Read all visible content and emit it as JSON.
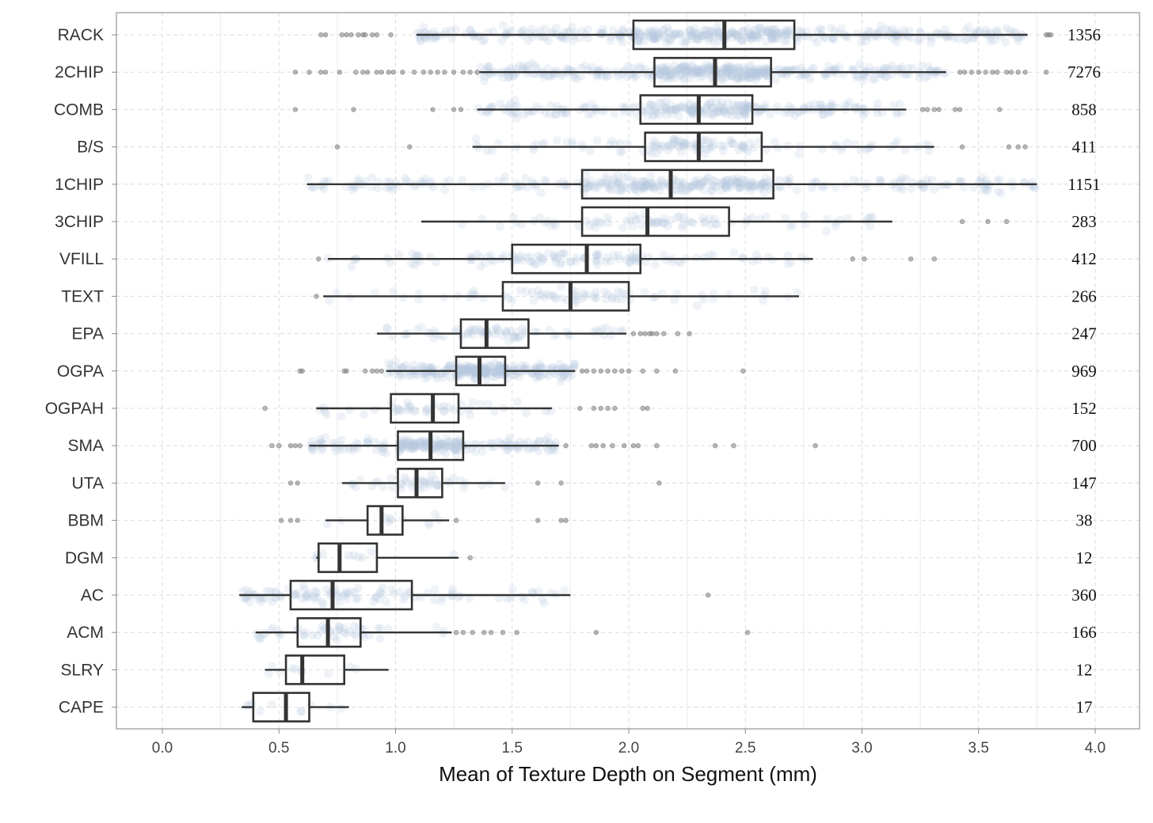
{
  "chart_data": {
    "type": "boxplot",
    "title": "",
    "xlabel": "Mean of Texture Depth on Segment (mm)",
    "ylabel": "",
    "xlim": [
      -0.2,
      4.2
    ],
    "x_ticks": [
      0.0,
      0.5,
      1.0,
      1.5,
      2.0,
      2.5,
      3.0,
      3.5,
      4.0
    ],
    "x_tick_labels": [
      "0.0",
      "0.5",
      "1.0",
      "1.5",
      "2.0",
      "2.5",
      "3.0",
      "3.5",
      "4.0"
    ],
    "grid": true,
    "colors": {
      "box_stroke": "#333333",
      "jitter": "#b8c9dd",
      "outlier": "#7f7f7f",
      "grid": "#dcdcdc",
      "panel_border": "#aaaaaa"
    },
    "categories": [
      {
        "name": "RACK",
        "n": "1356",
        "whisker_low": 1.09,
        "q1": 2.02,
        "median": 2.41,
        "q3": 2.71,
        "whisker_high": 3.71,
        "outliers": [
          0.68,
          0.7,
          0.77,
          0.79,
          0.81,
          0.84,
          0.86,
          0.87,
          0.9,
          0.92,
          0.98,
          3.79,
          3.8,
          3.81
        ]
      },
      {
        "name": "2CHIP",
        "n": "7276",
        "whisker_low": 1.36,
        "q1": 2.11,
        "median": 2.37,
        "q3": 2.61,
        "whisker_high": 3.36,
        "outliers": [
          0.57,
          0.63,
          0.68,
          0.7,
          0.76,
          0.83,
          0.86,
          0.88,
          0.92,
          0.94,
          0.97,
          0.99,
          1.03,
          1.08,
          1.12,
          1.15,
          1.18,
          1.21,
          1.25,
          1.29,
          1.32,
          1.35,
          3.42,
          3.44,
          3.47,
          3.5,
          3.53,
          3.56,
          3.58,
          3.62,
          3.64,
          3.67,
          3.7,
          3.79
        ]
      },
      {
        "name": "COMB",
        "n": "858",
        "whisker_low": 1.35,
        "q1": 2.05,
        "median": 2.3,
        "q3": 2.53,
        "whisker_high": 3.19,
        "outliers": [
          0.57,
          0.82,
          1.16,
          1.25,
          1.28,
          3.26,
          3.28,
          3.31,
          3.33,
          3.4,
          3.42,
          3.59
        ]
      },
      {
        "name": "B/S",
        "n": "411",
        "whisker_low": 1.33,
        "q1": 2.07,
        "median": 2.3,
        "q3": 2.57,
        "whisker_high": 3.31,
        "outliers": [
          0.75,
          1.06,
          3.43,
          3.63,
          3.67,
          3.7
        ]
      },
      {
        "name": "1CHIP",
        "n": "1151",
        "whisker_low": 0.62,
        "q1": 1.8,
        "median": 2.18,
        "q3": 2.62,
        "whisker_high": 3.75,
        "outliers": []
      },
      {
        "name": "3CHIP",
        "n": "283",
        "whisker_low": 1.11,
        "q1": 1.8,
        "median": 2.08,
        "q3": 2.43,
        "whisker_high": 3.13,
        "outliers": [
          3.43,
          3.54,
          3.62
        ]
      },
      {
        "name": "VFILL",
        "n": "412",
        "whisker_low": 0.71,
        "q1": 1.5,
        "median": 1.82,
        "q3": 2.05,
        "whisker_high": 2.79,
        "outliers": [
          0.67,
          2.96,
          3.01,
          3.21,
          3.31
        ]
      },
      {
        "name": "TEXT",
        "n": "266",
        "whisker_low": 0.69,
        "q1": 1.46,
        "median": 1.75,
        "q3": 2.0,
        "whisker_high": 2.73,
        "outliers": [
          0.66
        ]
      },
      {
        "name": "EPA",
        "n": "247",
        "whisker_low": 0.92,
        "q1": 1.28,
        "median": 1.39,
        "q3": 1.57,
        "whisker_high": 1.99,
        "outliers": [
          2.02,
          2.05,
          2.07,
          2.09,
          2.1,
          2.12,
          2.15,
          2.21,
          2.26
        ]
      },
      {
        "name": "OGPA",
        "n": "969",
        "whisker_low": 0.96,
        "q1": 1.26,
        "median": 1.36,
        "q3": 1.47,
        "whisker_high": 1.77,
        "outliers": [
          0.59,
          0.6,
          0.78,
          0.79,
          0.87,
          0.9,
          0.92,
          0.94,
          1.8,
          1.82,
          1.85,
          1.88,
          1.91,
          1.94,
          1.97,
          2.0,
          2.06,
          2.12,
          2.2,
          2.49
        ]
      },
      {
        "name": "OGPAH",
        "n": "152",
        "whisker_low": 0.66,
        "q1": 0.98,
        "median": 1.16,
        "q3": 1.27,
        "whisker_high": 1.67,
        "outliers": [
          0.44,
          1.79,
          1.85,
          1.88,
          1.91,
          1.94,
          2.06,
          2.08
        ]
      },
      {
        "name": "SMA",
        "n": "700",
        "whisker_low": 0.63,
        "q1": 1.01,
        "median": 1.15,
        "q3": 1.29,
        "whisker_high": 1.7,
        "outliers": [
          0.47,
          0.5,
          0.55,
          0.57,
          0.59,
          1.73,
          1.84,
          1.86,
          1.89,
          1.93,
          1.98,
          2.02,
          2.04,
          2.12,
          2.37,
          2.45,
          2.8
        ]
      },
      {
        "name": "UTA",
        "n": "147",
        "whisker_low": 0.77,
        "q1": 1.01,
        "median": 1.09,
        "q3": 1.2,
        "whisker_high": 1.47,
        "outliers": [
          0.55,
          0.58,
          1.61,
          1.71,
          2.13
        ]
      },
      {
        "name": "BBM",
        "n": "38",
        "whisker_low": 0.7,
        "q1": 0.88,
        "median": 0.94,
        "q3": 1.03,
        "whisker_high": 1.23,
        "outliers": [
          0.51,
          0.55,
          0.58,
          1.26,
          1.61,
          1.71,
          1.73
        ]
      },
      {
        "name": "DGM",
        "n": "12",
        "whisker_low": 0.66,
        "q1": 0.67,
        "median": 0.76,
        "q3": 0.92,
        "whisker_high": 1.27,
        "outliers": [
          1.32
        ]
      },
      {
        "name": "AC",
        "n": "360",
        "whisker_low": 0.33,
        "q1": 0.55,
        "median": 0.73,
        "q3": 1.07,
        "whisker_high": 1.75,
        "outliers": [
          2.34
        ]
      },
      {
        "name": "ACM",
        "n": "166",
        "whisker_low": 0.4,
        "q1": 0.58,
        "median": 0.71,
        "q3": 0.85,
        "whisker_high": 1.24,
        "outliers": [
          1.26,
          1.29,
          1.33,
          1.38,
          1.41,
          1.46,
          1.52,
          1.86,
          2.51
        ]
      },
      {
        "name": "SLRY",
        "n": "12",
        "whisker_low": 0.44,
        "q1": 0.53,
        "median": 0.6,
        "q3": 0.78,
        "whisker_high": 0.97,
        "outliers": []
      },
      {
        "name": "CAPE",
        "n": "17",
        "whisker_low": 0.34,
        "q1": 0.39,
        "median": 0.53,
        "q3": 0.63,
        "whisker_high": 0.8,
        "outliers": []
      }
    ]
  }
}
